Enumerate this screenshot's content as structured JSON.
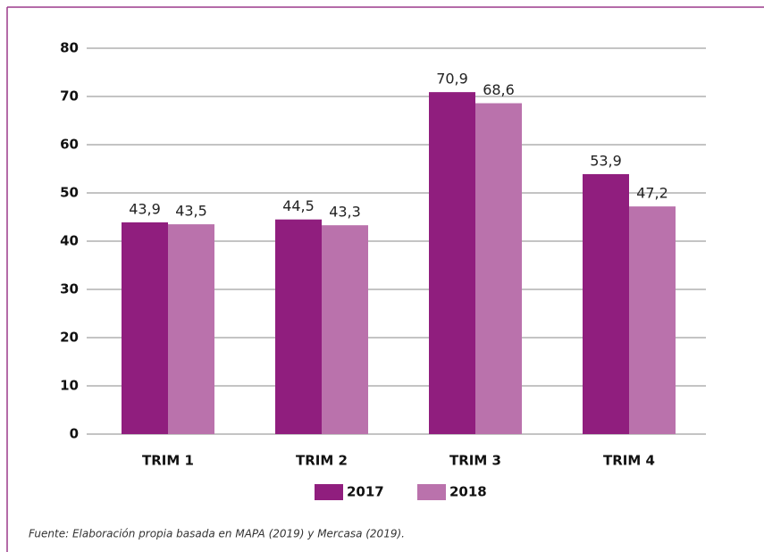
{
  "chart_data": {
    "type": "bar",
    "categories": [
      "TRIM 1",
      "TRIM 2",
      "TRIM 3",
      "TRIM 4"
    ],
    "series": [
      {
        "name": "2017",
        "color": "#901e7e",
        "values": [
          43.9,
          44.5,
          70.9,
          53.9
        ],
        "value_labels": [
          "43,9",
          "44,5",
          "70,9",
          "53,9"
        ]
      },
      {
        "name": "2018",
        "color": "#ba72ac",
        "values": [
          43.5,
          43.3,
          68.6,
          47.2
        ],
        "value_labels": [
          "43,5",
          "43,3",
          "68,6",
          "47,2"
        ]
      }
    ],
    "ylim": [
      0,
      80
    ],
    "yticks": [
      0,
      10,
      20,
      30,
      40,
      50,
      60,
      70,
      80
    ],
    "grid": true,
    "legend": "bottom",
    "source": "Fuente: Elaboración propia basada en MAPA (2019) y Mercasa (2019)."
  }
}
